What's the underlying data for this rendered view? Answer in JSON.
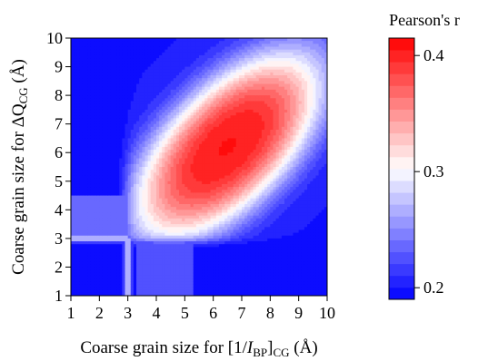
{
  "chart_data": {
    "type": "heatmap",
    "title": "",
    "x_axis": {
      "range": [
        1,
        10
      ],
      "ticks": [
        1,
        2,
        3,
        4,
        5,
        6,
        7,
        8,
        9,
        10
      ],
      "tick_labels": [
        "1",
        "2",
        "3",
        "4",
        "5",
        "6",
        "7",
        "8",
        "9",
        "10"
      ],
      "label_prefix": "Coarse grain size for [1/",
      "label_var": "I",
      "label_sub": "BP",
      "label_bracket_sub": "CG",
      "label_suffix": " (Å)"
    },
    "y_axis": {
      "range": [
        1,
        10
      ],
      "ticks": [
        1,
        2,
        3,
        4,
        5,
        6,
        7,
        8,
        9,
        10
      ],
      "tick_labels": [
        "1",
        "2",
        "3",
        "4",
        "5",
        "6",
        "7",
        "8",
        "9",
        "10"
      ],
      "label_prefix": "Coarse grain size for ΔQ",
      "label_sub": "CG",
      "label_suffix": " (Å)"
    },
    "colorbar": {
      "title": "Pearson's r",
      "range": [
        0.19,
        0.415
      ],
      "ticks": [
        0.2,
        0.3,
        0.4
      ],
      "tick_labels": [
        "0.2",
        "0.3",
        "0.4"
      ],
      "levels": 22,
      "colormap": "blue-white-red",
      "colors": {
        "low": "#0000ff",
        "mid": "#ffffff",
        "high": "#ff0000"
      }
    },
    "grid_resolution": 90,
    "surface": {
      "description": "Pearson's r over (x, y) grain sizes; peak ~0.40 near x=6.5, y=6.2, low (~0.19) where x<2.8 or y<2.8",
      "peak": {
        "x": 6.5,
        "y": 6.2,
        "r": 0.4
      },
      "floor": 0.19
    }
  }
}
